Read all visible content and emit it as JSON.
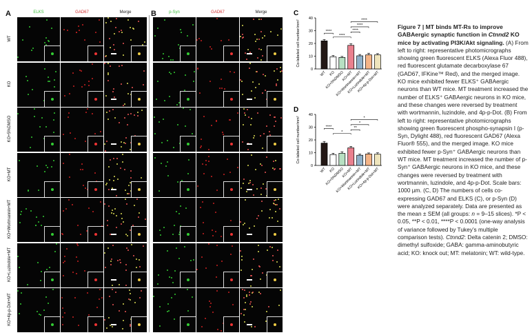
{
  "panels": {
    "A": {
      "label": "A",
      "columns": [
        "ELKS",
        "GAD67",
        "Merge"
      ],
      "column_colors": [
        "#3fbf3f",
        "#d32f2f",
        "#222222"
      ]
    },
    "B": {
      "label": "B",
      "columns": [
        "p-Syn",
        "GAD67",
        "Merge"
      ],
      "column_colors": [
        "#3fbf3f",
        "#d32f2f",
        "#222222"
      ]
    },
    "rows": [
      "WT",
      "KO",
      "KO+5%DMSO",
      "KO+MT",
      "KO+Wortmannin+MT",
      "KO+Luzindole+MT",
      "KO+4p-p-Dot+MT"
    ]
  },
  "chart_data": [
    {
      "panel": "C",
      "type": "bar",
      "ylabel": "Co-labeled cell number/mm²",
      "ylim": [
        0,
        40
      ],
      "yticks": [
        "0",
        "10",
        "20",
        "30",
        "40"
      ],
      "categories": [
        "WT",
        "KO",
        "KO+5%DMSO",
        "KO+MT",
        "KO+Wortmannin+MT",
        "KO+Luzindole+MT",
        "KO+4p-p-Dot+MT"
      ],
      "values": [
        22,
        9.5,
        9,
        18.5,
        10.3,
        11,
        11
      ],
      "errors": [
        1,
        1,
        0.8,
        1.2,
        1,
        1.3,
        1
      ],
      "colors": [
        "#231815",
        "#ffffff",
        "#b7e0c2",
        "#e9808e",
        "#8eb0c9",
        "#f4b487",
        "#efe5bd"
      ],
      "significance": [
        {
          "from": 0,
          "to": 1,
          "y": 28,
          "label": "****"
        },
        {
          "from": 1,
          "to": 3,
          "y": 25,
          "label": "****"
        },
        {
          "from": 3,
          "to": 4,
          "y": 29,
          "label": "****"
        },
        {
          "from": 3,
          "to": 5,
          "y": 33,
          "label": "****"
        },
        {
          "from": 3,
          "to": 6,
          "y": 37,
          "label": "****"
        }
      ]
    },
    {
      "panel": "D",
      "type": "bar",
      "ylabel": "Co-labeled cell number/mm²",
      "ylim": [
        0,
        40
      ],
      "yticks": [
        "0",
        "10",
        "20",
        "30",
        "40"
      ],
      "categories": [
        "WT",
        "KO",
        "KO+5%DMSO",
        "KO+MT",
        "KO+Wortmannin+MT",
        "KO+Luzindole+MT",
        "KO+4p-p-Dot+MT"
      ],
      "values": [
        17.5,
        8.5,
        9.5,
        13.8,
        8,
        9,
        8.8
      ],
      "errors": [
        1.3,
        1,
        1.2,
        1.1,
        0.9,
        0.8,
        1.1
      ],
      "colors": [
        "#231815",
        "#ffffff",
        "#b7e0c2",
        "#e9808e",
        "#8eb0c9",
        "#f4b487",
        "#efe5bd"
      ],
      "significance": [
        {
          "from": 0,
          "to": 1,
          "y": 29,
          "label": "****"
        },
        {
          "from": 1,
          "to": 3,
          "y": 25,
          "label": "*"
        },
        {
          "from": 3,
          "to": 4,
          "y": 28,
          "label": "**"
        },
        {
          "from": 3,
          "to": 5,
          "y": 32,
          "label": "*"
        },
        {
          "from": 3,
          "to": 6,
          "y": 36,
          "label": "*"
        }
      ]
    }
  ],
  "caption": {
    "title_a": "Figure 7  |  MT binds MT-Rs to improve GABAergic synaptic function in ",
    "title_italic": "Ctnnd2",
    "title_b": " KO mice by activating PI3K/Akt signaling.",
    "body_a": "(A) From left to right: representative photomicrographs showing green fluorescent ELKS (Alexa Fluor 488), red fluorescent glutamate decarboxylase 67 (GAD67, IFKine™ Red), and the merged image. KO mice exhibited fewer ELKS⁺ GABAergic neurons than WT mice. MT treatment increased the number of ELKS⁺ GABAergic neurons in KO mice, and these changes were reversed by treatment with wortmannin, luzindole, and 4p-p-Dot. (B) From left to right: representative photomicrographs showing green fluorescent phospho-synapsin I (p-Syn, Dylight 488), red fluorescent GAD67 (Alexa Fluor® 555), and the merged image. KO mice exhibited fewer p-Syn⁺ GABAergic neurons than WT mice. MT treatment increased the number of p-Syn⁺ GABAergic neurons in KO mice, and these changes were reversed by treatment with wortmannin, luzindole, and 4p-p-Dot. Scale bars: 1000 µm. (C, D) The numbers of cells co-expressing GAD67 and ELKS (C), or p-Syn (D) were analyzed separately. Data are presented as the mean ± SEM (all groups: ",
    "body_n": "n",
    "body_b": " = 9–15 slices). *P < 0.05, **P < 0.01, ****P < 0.0001 (one-way analysis of variance followed by Tukey’s multiple comparison tests). ",
    "body_italic": "Ctnnd2",
    "body_c": ": Delta catenin 2; DMSO: dimethyl sulfoxide; GABA: gamma-aminobutyric acid; KO: knock out; MT: melatonin; WT: wild-type."
  }
}
